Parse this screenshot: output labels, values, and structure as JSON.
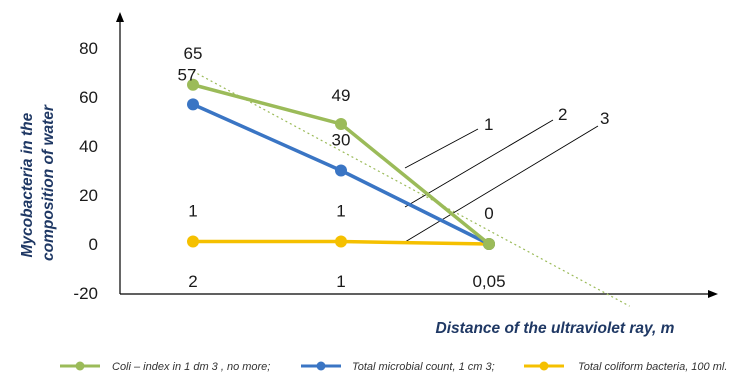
{
  "chart_data": {
    "type": "line",
    "categories": [
      "2",
      "1",
      "0,05"
    ],
    "xlabel": "Distance of the ultraviolet ray, m",
    "ylabel": "Mycobacteria in the composition of water",
    "ylim": [
      -20,
      80
    ],
    "yticks": [
      -20,
      0,
      20,
      40,
      60,
      80
    ],
    "grid": false,
    "legend_position": "bottom",
    "series": [
      {
        "name": "Coli – index in 1 dm 3 , no more;",
        "color": "#9bbb59",
        "values": [
          65,
          49,
          0
        ],
        "labels": [
          "65",
          "49",
          "0"
        ]
      },
      {
        "name": "Total microbial count, 1 cm 3;",
        "color": "#3a75c4",
        "values": [
          57,
          30,
          0
        ],
        "labels": [
          "57",
          "30",
          ""
        ]
      },
      {
        "name": "Total coliform bacteria, 100 ml.",
        "color": "#f5c000",
        "values": [
          1,
          1,
          0
        ],
        "labels": [
          "1",
          "1",
          ""
        ]
      }
    ],
    "trendline": {
      "color": "#9bbb59",
      "style": "dotted"
    },
    "annotations": [
      "1",
      "2",
      "3"
    ]
  }
}
